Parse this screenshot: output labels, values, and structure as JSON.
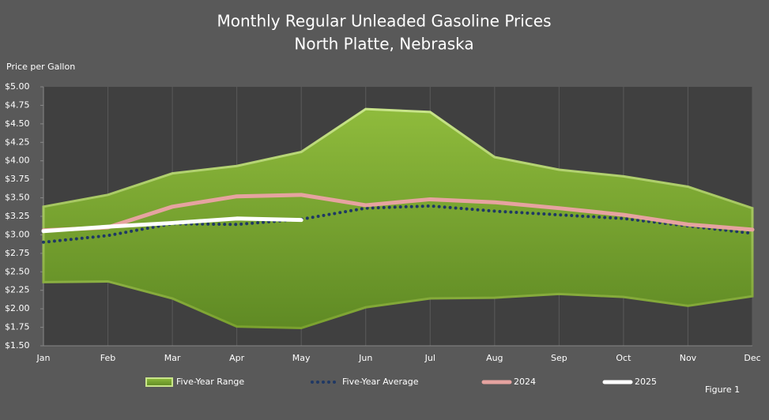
{
  "chart_data": {
    "type": "line",
    "title": "Monthly Regular Unleaded Gasoline Prices",
    "subtitle": "North Platte, Nebraska",
    "y_label": "Price per Gallon",
    "annotation": "Figure 1",
    "categories": [
      "Jan",
      "Feb",
      "Mar",
      "Apr",
      "May",
      "Jun",
      "Jul",
      "Aug",
      "Sep",
      "Oct",
      "Nov",
      "Dec"
    ],
    "range": {
      "name": "Five-Year Range",
      "color": "#8db33a",
      "high": [
        3.38,
        3.54,
        3.83,
        3.93,
        4.12,
        4.7,
        4.66,
        4.05,
        3.88,
        3.79,
        3.65,
        3.36
      ],
      "low": [
        2.36,
        2.37,
        2.14,
        1.76,
        1.74,
        2.02,
        2.14,
        2.15,
        2.2,
        2.16,
        2.04,
        2.17
      ]
    },
    "series": [
      {
        "name": "Five-Year Average",
        "color": "#1f3864",
        "style": "dotted",
        "values": [
          2.9,
          2.99,
          3.15,
          3.14,
          3.21,
          3.36,
          3.39,
          3.32,
          3.27,
          3.22,
          3.12,
          3.02
        ]
      },
      {
        "name": "2024",
        "color": "#e6a3a0",
        "style": "solid",
        "values": [
          3.06,
          3.1,
          3.38,
          3.52,
          3.54,
          3.4,
          3.48,
          3.44,
          3.36,
          3.27,
          3.14,
          3.07
        ]
      },
      {
        "name": "2025",
        "color": "#ffffff",
        "style": "solid",
        "values": [
          3.05,
          3.11,
          3.16,
          3.22,
          3.2,
          null,
          null,
          null,
          null,
          null,
          null,
          null
        ]
      }
    ],
    "ylim": [
      1.5,
      5.0
    ],
    "yticks": [
      {
        "value": 1.5,
        "label": "$1.50"
      },
      {
        "value": 1.75,
        "label": "$1.75"
      },
      {
        "value": 2.0,
        "label": "$2.00"
      },
      {
        "value": 2.25,
        "label": "$2.25"
      },
      {
        "value": 2.5,
        "label": "$2.50"
      },
      {
        "value": 2.75,
        "label": "$2.75"
      },
      {
        "value": 3.0,
        "label": "$3.00"
      },
      {
        "value": 3.25,
        "label": "$3.25"
      },
      {
        "value": 3.5,
        "label": "$3.50"
      },
      {
        "value": 3.75,
        "label": "$3.75"
      },
      {
        "value": 4.0,
        "label": "$4.00"
      },
      {
        "value": 4.25,
        "label": "$4.25"
      },
      {
        "value": 4.5,
        "label": "$4.50"
      },
      {
        "value": 4.75,
        "label": "$4.75"
      },
      {
        "value": 5.0,
        "label": "$5.00"
      }
    ],
    "grid": "vertical"
  }
}
